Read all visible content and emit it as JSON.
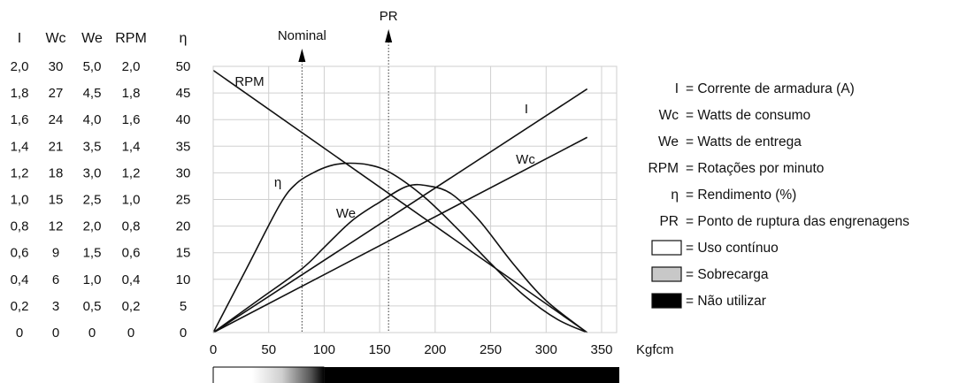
{
  "chart_data": {
    "type": "line",
    "xlabel": "Kgfcm",
    "xlim": [
      0,
      350
    ],
    "x_ticks": [
      "0",
      "50",
      "100",
      "150",
      "200",
      "250",
      "300",
      "350"
    ],
    "y_axes": [
      {
        "name": "I",
        "ticks": [
          "2,0",
          "1,8",
          "1,6",
          "1,4",
          "1,2",
          "1,0",
          "0,8",
          "0,6",
          "0,4",
          "0,2",
          "0"
        ]
      },
      {
        "name": "Wc",
        "ticks": [
          "30",
          "27",
          "24",
          "21",
          "18",
          "15",
          "12",
          "9",
          "6",
          "3",
          "0"
        ]
      },
      {
        "name": "We",
        "ticks": [
          "5,0",
          "4,5",
          "4,0",
          "3,5",
          "3,0",
          "2,5",
          "2,0",
          "1,5",
          "1,0",
          "0,5",
          "0"
        ]
      },
      {
        "name": "RPM",
        "ticks": [
          "2,0",
          "1,8",
          "1,6",
          "1,4",
          "1,2",
          "1,0",
          "0,8",
          "0,6",
          "0,4",
          "0,2",
          "0"
        ]
      },
      {
        "name": "η",
        "ticks": [
          "50",
          "45",
          "40",
          "35",
          "30",
          "25",
          "20",
          "15",
          "10",
          "5",
          "0"
        ]
      }
    ],
    "grid": true,
    "markers": [
      {
        "label": "Nominal",
        "x": 80
      },
      {
        "label": "PR",
        "x": 158
      }
    ],
    "series": [
      {
        "name": "I",
        "scale": "I",
        "color": "#111111",
        "x": [
          0,
          337
        ],
        "values": [
          0,
          1.83
        ]
      },
      {
        "name": "Wc",
        "scale": "Wc",
        "color": "#111111",
        "x": [
          0,
          337
        ],
        "values": [
          0,
          22
        ]
      },
      {
        "name": "We",
        "scale": "We",
        "color": "#111111",
        "x": [
          0,
          40,
          80,
          100,
          125,
          150,
          175,
          195,
          215,
          240,
          270,
          300,
          337
        ],
        "values": [
          0,
          0.6,
          1.2,
          1.6,
          2.1,
          2.45,
          2.75,
          2.75,
          2.6,
          2.1,
          1.3,
          0.6,
          0
        ]
      },
      {
        "name": "RPM",
        "scale": "RPM",
        "color": "#111111",
        "x": [
          0,
          337
        ],
        "values": [
          1.97,
          0
        ]
      },
      {
        "name": "η",
        "scale": "η",
        "color": "#111111",
        "x": [
          0,
          30,
          60,
          75,
          90,
          105,
          120,
          140,
          160,
          190,
          220,
          250,
          280,
          310,
          337
        ],
        "values": [
          0,
          12,
          24,
          28,
          30,
          31.3,
          31.8,
          31.5,
          30,
          25.5,
          19.5,
          13,
          7,
          2.5,
          0
        ]
      }
    ],
    "curve_labels": [
      "RPM",
      "η",
      "We",
      "I",
      "Wc"
    ],
    "legend_position": "right",
    "legend": [
      {
        "symbol": "I",
        "text": "= Corrente de armadura (A)"
      },
      {
        "symbol": "Wc",
        "text": "= Watts de consumo"
      },
      {
        "symbol": "We",
        "text": "= Watts de entrega"
      },
      {
        "symbol": "RPM",
        "text": "= Rotações por minuto"
      },
      {
        "symbol": "η",
        "text": "= Rendimento (%)"
      },
      {
        "symbol": "PR",
        "text": "= Ponto de ruptura das engrenagens"
      },
      {
        "swatch": "#ffffff",
        "text": "= Uso contínuo"
      },
      {
        "swatch": "#c8c8c8",
        "text": "= Sobrecarga"
      },
      {
        "swatch": "#000000",
        "text": "= Não utilizar"
      }
    ],
    "load_bar": {
      "continuous_until": 45,
      "overload_until": 100,
      "end": 350
    }
  }
}
